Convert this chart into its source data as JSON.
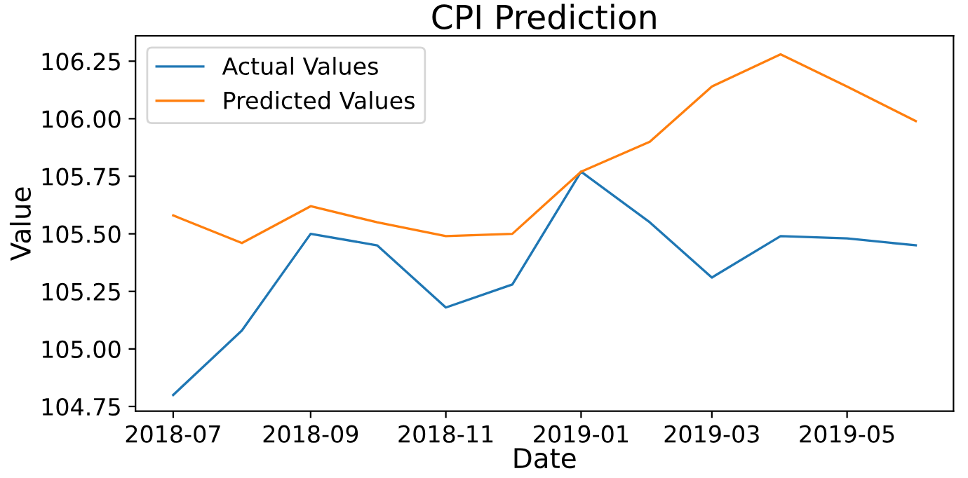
{
  "chart_data": {
    "type": "line",
    "title": "CPI Prediction",
    "xlabel": "Date",
    "ylabel": "Value",
    "x": [
      "2018-07-01",
      "2018-08-01",
      "2018-09-01",
      "2018-10-01",
      "2018-11-01",
      "2018-12-01",
      "2019-01-01",
      "2019-02-01",
      "2019-03-01",
      "2019-04-01",
      "2019-05-01",
      "2019-06-01"
    ],
    "series": [
      {
        "name": "Actual Values",
        "color": "#1f77b4",
        "values": [
          104.8,
          105.08,
          105.5,
          105.45,
          105.18,
          105.28,
          105.77,
          105.55,
          105.31,
          105.49,
          105.48,
          105.45
        ]
      },
      {
        "name": "Predicted Values",
        "color": "#ff7f0e",
        "values": [
          105.58,
          105.46,
          105.62,
          105.55,
          105.49,
          105.5,
          105.77,
          105.9,
          106.14,
          106.28,
          106.14,
          105.99
        ]
      }
    ],
    "xlim": [
      "2018-06-14",
      "2019-06-18"
    ],
    "xticks": [
      {
        "value": "2018-07-01",
        "label": "2018-07"
      },
      {
        "value": "2018-09-01",
        "label": "2018-09"
      },
      {
        "value": "2018-11-01",
        "label": "2018-11"
      },
      {
        "value": "2019-01-01",
        "label": "2019-01"
      },
      {
        "value": "2019-03-01",
        "label": "2019-03"
      },
      {
        "value": "2019-05-01",
        "label": "2019-05"
      }
    ],
    "ylim": [
      104.73,
      106.36
    ],
    "yticks": [
      {
        "value": 104.75,
        "label": "104.75"
      },
      {
        "value": 105.0,
        "label": "105.00"
      },
      {
        "value": 105.25,
        "label": "105.25"
      },
      {
        "value": 105.5,
        "label": "105.50"
      },
      {
        "value": 105.75,
        "label": "105.75"
      },
      {
        "value": 106.0,
        "label": "106.00"
      },
      {
        "value": 106.25,
        "label": "106.25"
      }
    ],
    "legend": "top left",
    "grid": false,
    "marker": "none",
    "line_style": "solid"
  }
}
